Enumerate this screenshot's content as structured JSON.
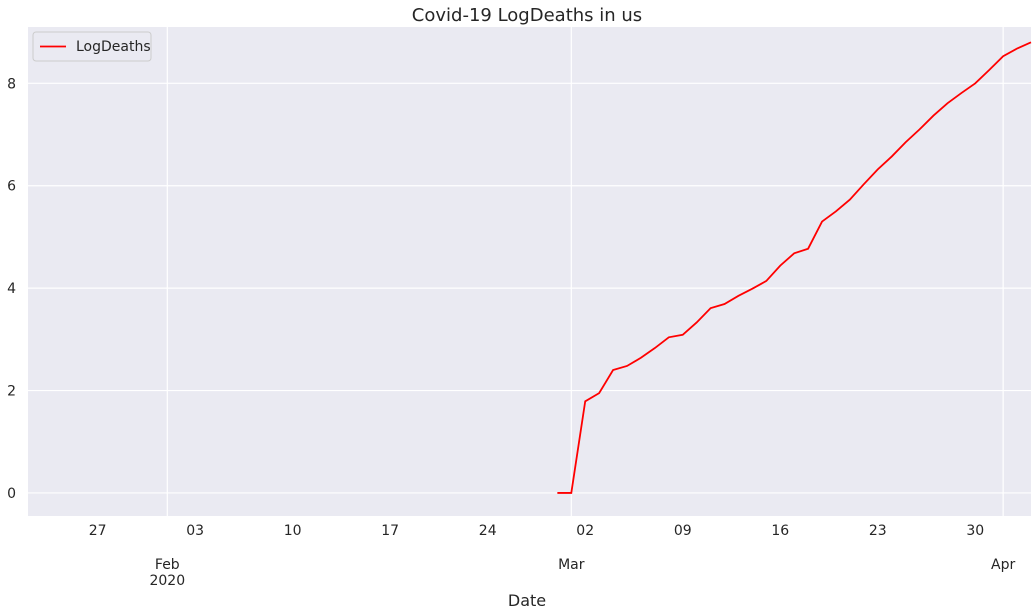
{
  "chart_data": {
    "type": "line",
    "title": "Covid-19 LogDeaths in us",
    "xlabel": "Date",
    "ylabel": "",
    "x_range": [
      "2020-01-22",
      "2020-04-03"
    ],
    "ylim": [
      -0.45,
      9.1
    ],
    "yticks": [
      0,
      2,
      4,
      6,
      8
    ],
    "xticks_minor": [
      {
        "date": "2020-01-27",
        "label": "27"
      },
      {
        "date": "2020-02-03",
        "label": "03"
      },
      {
        "date": "2020-02-10",
        "label": "10"
      },
      {
        "date": "2020-02-17",
        "label": "17"
      },
      {
        "date": "2020-02-24",
        "label": "24"
      },
      {
        "date": "2020-03-02",
        "label": "02"
      },
      {
        "date": "2020-03-09",
        "label": "09"
      },
      {
        "date": "2020-03-16",
        "label": "16"
      },
      {
        "date": "2020-03-23",
        "label": "23"
      },
      {
        "date": "2020-03-30",
        "label": "30"
      }
    ],
    "xticks_major": [
      {
        "date": "2020-02-01",
        "label": "Feb\n2020"
      },
      {
        "date": "2020-03-01",
        "label": "Mar"
      },
      {
        "date": "2020-04-01",
        "label": "Apr"
      }
    ],
    "grid": true,
    "legend": {
      "position": "top-left"
    },
    "series": [
      {
        "name": "LogDeaths",
        "color": "#ff0000",
        "x": [
          "2020-02-29",
          "2020-03-01",
          "2020-03-02",
          "2020-03-03",
          "2020-03-04",
          "2020-03-05",
          "2020-03-06",
          "2020-03-07",
          "2020-03-08",
          "2020-03-09",
          "2020-03-10",
          "2020-03-11",
          "2020-03-12",
          "2020-03-13",
          "2020-03-14",
          "2020-03-15",
          "2020-03-16",
          "2020-03-17",
          "2020-03-18",
          "2020-03-19",
          "2020-03-20",
          "2020-03-21",
          "2020-03-22",
          "2020-03-23",
          "2020-03-24",
          "2020-03-25",
          "2020-03-26",
          "2020-03-27",
          "2020-03-28",
          "2020-03-29",
          "2020-03-30",
          "2020-03-31",
          "2020-04-01",
          "2020-04-02",
          "2020-04-03"
        ],
        "y": [
          0.0,
          0.0,
          1.79,
          1.95,
          2.4,
          2.48,
          2.64,
          2.83,
          3.04,
          3.09,
          3.33,
          3.61,
          3.69,
          3.85,
          3.99,
          4.14,
          4.44,
          4.68,
          4.77,
          5.3,
          5.5,
          5.73,
          6.03,
          6.32,
          6.57,
          6.85,
          7.1,
          7.37,
          7.61,
          7.81,
          8.0,
          8.26,
          8.53,
          8.68,
          8.8
        ]
      }
    ]
  }
}
